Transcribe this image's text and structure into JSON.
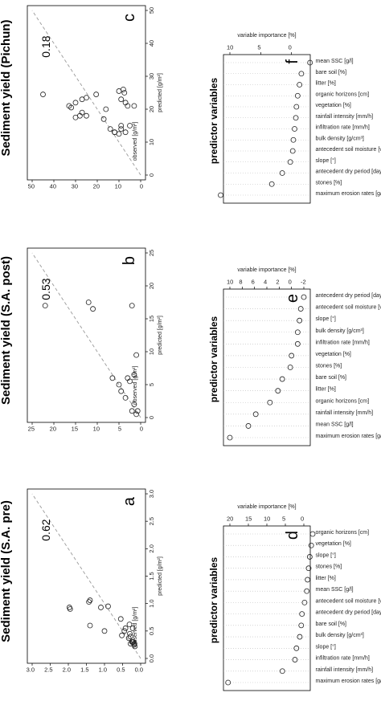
{
  "chart_data": [
    {
      "id": "a",
      "type": "scatter",
      "letter": "a",
      "title": "Sediment yield (S.A. pre)",
      "xlabel": "predicted [g/m²]",
      "ylabel": "observed [g/m²]",
      "xlim": [
        0,
        3.0
      ],
      "ylim": [
        0,
        3.0
      ],
      "xticks": [
        "0.0",
        "0.5",
        "1.0",
        "1.5",
        "2.0",
        "2.5",
        "3.0"
      ],
      "yticks": [
        "0.0",
        "0.5",
        "1.0",
        "1.5",
        "2.0",
        "2.5",
        "3.0"
      ],
      "r2": "0.62",
      "identity_line": true,
      "points": [
        [
          0.93,
          1.97
        ],
        [
          0.9,
          1.95
        ],
        [
          1.03,
          1.43
        ],
        [
          1.06,
          1.4
        ],
        [
          0.6,
          1.4
        ],
        [
          0.93,
          1.1
        ],
        [
          0.95,
          0.9
        ],
        [
          0.5,
          1.0
        ],
        [
          0.42,
          0.52
        ],
        [
          0.72,
          0.55
        ],
        [
          0.55,
          0.42
        ],
        [
          0.62,
          0.31
        ],
        [
          0.5,
          0.45
        ],
        [
          0.45,
          0.3
        ],
        [
          0.4,
          0.28
        ],
        [
          0.37,
          0.33
        ],
        [
          0.55,
          0.22
        ],
        [
          0.3,
          0.22
        ],
        [
          0.3,
          0.24
        ],
        [
          0.3,
          0.2
        ],
        [
          0.27,
          0.28
        ],
        [
          0.25,
          0.18
        ],
        [
          0.27,
          0.17
        ],
        [
          0.22,
          0.16
        ]
      ]
    },
    {
      "id": "b",
      "type": "scatter",
      "letter": "b",
      "title": "Sediment yield (S.A. post)",
      "xlabel": "predicted [g/m²]",
      "ylabel": "observed [g/m²]",
      "xlim": [
        0,
        25
      ],
      "ylim": [
        0,
        25
      ],
      "xticks": [
        "0",
        "5",
        "10",
        "15",
        "20",
        "25"
      ],
      "yticks": [
        "0",
        "5",
        "10",
        "15",
        "20",
        "25"
      ],
      "r2": "0.53",
      "identity_line": true,
      "points": [
        [
          17,
          22
        ],
        [
          17.5,
          12
        ],
        [
          16.5,
          11
        ],
        [
          17,
          2
        ],
        [
          9.5,
          1
        ],
        [
          6.5,
          1.5
        ],
        [
          6,
          3
        ],
        [
          6,
          6.5
        ],
        [
          5,
          5
        ],
        [
          5.5,
          2.5
        ],
        [
          4,
          4.5
        ],
        [
          3,
          3.5
        ],
        [
          1,
          2
        ],
        [
          1,
          0.7
        ],
        [
          2,
          1.5
        ],
        [
          0.5,
          1
        ]
      ]
    },
    {
      "id": "c",
      "type": "scatter",
      "letter": "c",
      "title": "Sediment yield (Pichun)",
      "xlabel": "predicted [g/m²]",
      "ylabel": "observed [g/m²]",
      "xlim": [
        0,
        50
      ],
      "ylim": [
        0,
        50
      ],
      "xticks": [
        "0",
        "10",
        "20",
        "30",
        "40",
        "50"
      ],
      "yticks": [
        "0",
        "10",
        "20",
        "30",
        "40",
        "50"
      ],
      "r2": "0.18",
      "identity_line": true,
      "points": [
        [
          24.5,
          45
        ],
        [
          20.5,
          32
        ],
        [
          22,
          30
        ],
        [
          21,
          33
        ],
        [
          23,
          27
        ],
        [
          23.5,
          25
        ],
        [
          24.5,
          20.5
        ],
        [
          17.5,
          30
        ],
        [
          18,
          28
        ],
        [
          19,
          27
        ],
        [
          18,
          25
        ],
        [
          25.5,
          10
        ],
        [
          25,
          7.5
        ],
        [
          26,
          8
        ],
        [
          23,
          9
        ],
        [
          22,
          7
        ],
        [
          21,
          6
        ],
        [
          20,
          16
        ],
        [
          21,
          3
        ],
        [
          17,
          17
        ],
        [
          14,
          14
        ],
        [
          13,
          7
        ],
        [
          14,
          9
        ],
        [
          13,
          12
        ],
        [
          15,
          9
        ],
        [
          12.5,
          10
        ],
        [
          13,
          12
        ],
        [
          15,
          5
        ]
      ]
    },
    {
      "id": "d",
      "type": "scatter",
      "letter": "d",
      "title": "predictor variables",
      "xlabel": "variable importance [%]",
      "xlim": [
        0,
        20
      ],
      "xticks": [
        "0",
        "5",
        "10",
        "15",
        "20"
      ],
      "predictors": [
        "maximum erosion rates [g/m²/min]",
        "rainfall intensity [mm/h]",
        "infiltration rate [mm/h]",
        "slope [°]",
        "bulk density [g/cm³]",
        "bare soil [%]",
        "antecedent dry period [days]",
        "antecedent soil moisture [vol.%]",
        "mean SSC [g/l]",
        "litter [%]",
        "stones [%]",
        "slope [°]",
        "vegetation [%]",
        "organic horizons [cm]"
      ],
      "values": [
        20.5,
        5.8,
        2.4,
        2.0,
        1.1,
        0.7,
        0.5,
        -0.2,
        -0.8,
        -1.0,
        -1.3,
        -1.6,
        -2.0,
        -2.4
      ]
    },
    {
      "id": "e",
      "type": "scatter",
      "letter": "e",
      "title": "predictor variables",
      "xlabel": "variable importance [%]",
      "xlim": [
        -2,
        10
      ],
      "xticks": [
        "-2",
        "0",
        "2",
        "4",
        "6",
        "8",
        "10"
      ],
      "predictors": [
        "maximum erosion rates [g/m²/min]",
        "mean SSC [g/l]",
        "rainfall intensity [mm/h]",
        "organic horizons [cm]",
        "litter [%]",
        "bare soil [%]",
        "stones [%]",
        "vegetation [%]",
        "infiltration rate [mm/h]",
        "bulk density [g/cm³]",
        "slope [°]",
        "antecedent soil moisture [vol.%]",
        "antecedent dry period [days]"
      ],
      "values": [
        10.0,
        7.0,
        5.8,
        3.5,
        2.2,
        1.5,
        0.2,
        0.0,
        -1.0,
        -1.0,
        -1.3,
        -1.5,
        -2.0
      ]
    },
    {
      "id": "f",
      "type": "scatter",
      "letter": "f",
      "title": "predictor variables",
      "xlabel": "variable importance [%]",
      "xlim": [
        -2,
        10
      ],
      "xticks": [
        "0",
        "5",
        "10"
      ],
      "predictors": [
        "maximum erosion rates [g/m²/min]",
        "stones [%]",
        "antecedent dry period [days]",
        "slope [°]",
        "antecedent soil moisture [vol.%]",
        "bulk density [g/cm³]",
        "infiltration rate [mm/h]",
        "rainfall intensity [mm/h]",
        "vegetation [%]",
        "organic horizons [cm]",
        "litter [%]",
        "bare soil [%]",
        "mean SSC [g/l]"
      ],
      "values": [
        11.5,
        3.2,
        1.5,
        0.2,
        -0.2,
        -0.3,
        -0.5,
        -0.7,
        -0.8,
        -1.0,
        -1.3,
        -1.6,
        -3.0
      ]
    }
  ]
}
